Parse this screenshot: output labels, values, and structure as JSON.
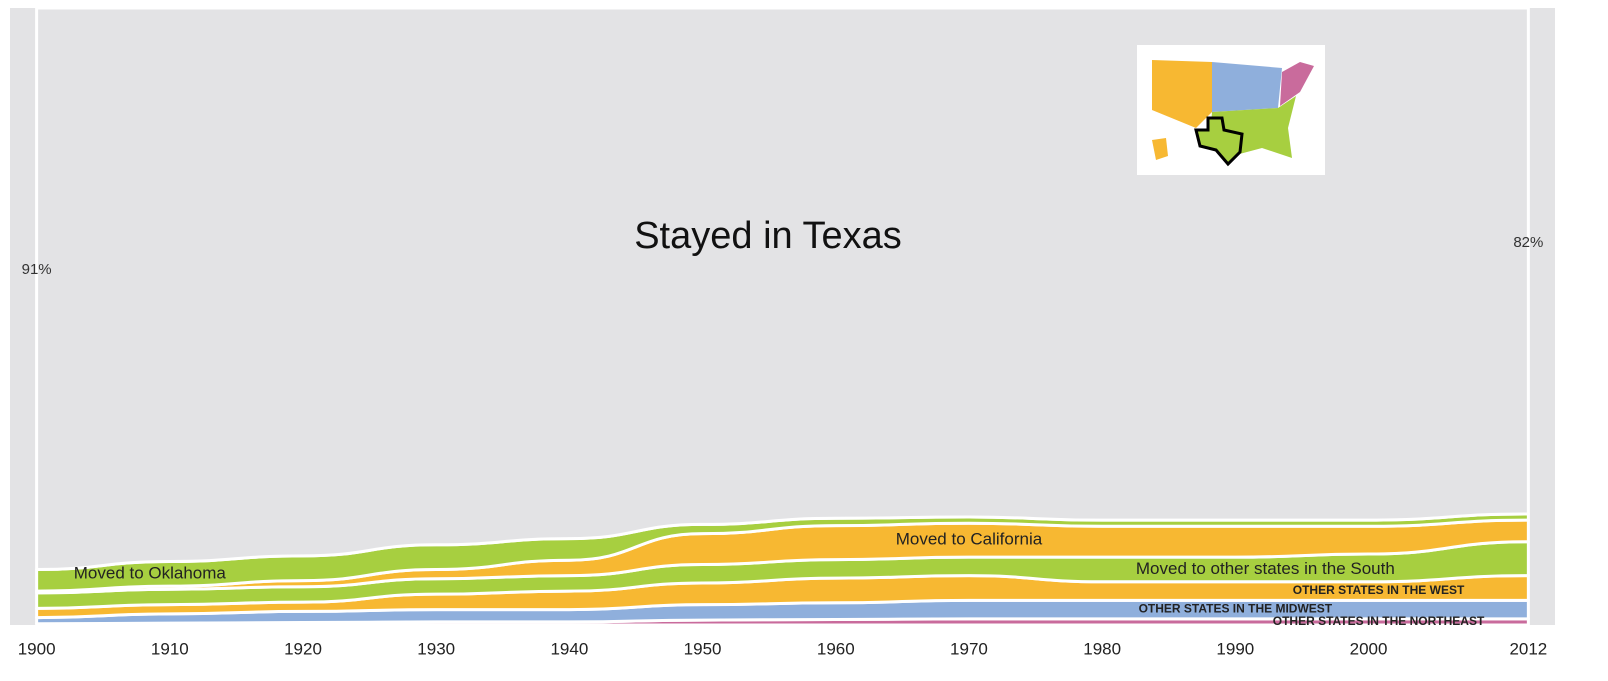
{
  "chart_data": {
    "type": "stream",
    "title": "Stayed in Texas",
    "x": [
      1900,
      1910,
      1920,
      1930,
      1940,
      1950,
      1960,
      1970,
      1980,
      1990,
      2000,
      2012
    ],
    "xlim": [
      1898,
      2014
    ],
    "xticks": [
      1900,
      1910,
      1920,
      1930,
      1940,
      1950,
      1960,
      1970,
      1980,
      1990,
      2000,
      2012
    ],
    "ylim": [
      0,
      100
    ],
    "grid": true,
    "series": [
      {
        "name": "OTHER STATES IN THE NORTHEAST",
        "color": "#c96b9c",
        "values": [
          0.2,
          0.3,
          0.4,
          0.5,
          0.5,
          0.8,
          0.9,
          1,
          1,
          1,
          1,
          1
        ]
      },
      {
        "name": "OTHER STATES IN THE MIDWEST",
        "color": "#8fafdc",
        "values": [
          1,
          1.5,
          1.8,
          2,
          2,
          2.5,
          2.7,
          3,
          3,
          3,
          3,
          3
        ]
      },
      {
        "name": "OTHER STATES IN THE WEST",
        "color": "#f7b832",
        "values": [
          1.5,
          1.5,
          1.5,
          2.5,
          3,
          3.5,
          4,
          4,
          3,
          3,
          3,
          4
        ]
      },
      {
        "name": "Moved to other states in the South",
        "color": "#a7cf40",
        "values": [
          2.5,
          2.5,
          2.5,
          2.5,
          2.5,
          3,
          3,
          3,
          4,
          4,
          4.5,
          5.5
        ]
      },
      {
        "name": "Moved to California",
        "color": "#f7b832",
        "values": [
          0.3,
          0.5,
          1,
          1.5,
          2.5,
          5,
          5.5,
          5.5,
          5,
          5,
          4.5,
          3.5
        ]
      },
      {
        "name": "Moved to Oklahoma",
        "color": "#a7cf40",
        "values": [
          3.5,
          4,
          4,
          4,
          3.5,
          1.5,
          1.2,
          1,
          1,
          1,
          1,
          1
        ]
      },
      {
        "name": "Stayed in Texas",
        "color": "#e3e3e5",
        "values": [
          91,
          89.7,
          88.8,
          87,
          86,
          83.7,
          82.7,
          82.5,
          83,
          83,
          83,
          82
        ],
        "value_labels": [
          "91%",
          null,
          null,
          null,
          null,
          null,
          null,
          null,
          null,
          null,
          null,
          "82%"
        ]
      }
    ]
  }
}
